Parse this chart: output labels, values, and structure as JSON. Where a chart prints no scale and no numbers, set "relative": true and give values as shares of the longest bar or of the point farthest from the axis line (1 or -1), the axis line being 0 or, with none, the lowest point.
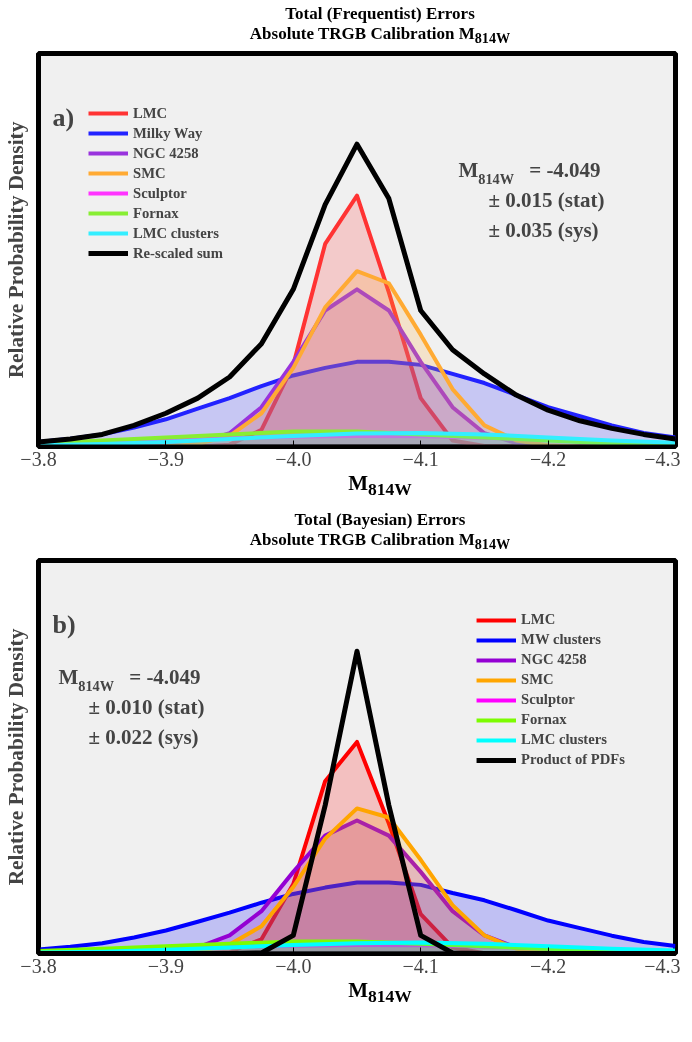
{
  "chart_data": [
    {
      "type": "area",
      "title": "Total (Frequentist) Errors",
      "subtitle": "Absolute TRGB Calibration M$_{814W}$",
      "xlabel": "M$_{814W}$",
      "ylabel": "Relative Probability Density",
      "relative": true,
      "legend": "top left",
      "annotations": [
        "a)",
        "M$_{814W}$ = -4.049",
        "± 0.015 (stat)",
        "± 0.035 (sys)"
      ],
      "xlim": [
        -3.8,
        -4.3
      ],
      "xticks": [
        {
          "value": -3.8,
          "label": "−3.8"
        },
        {
          "value": -3.9,
          "label": "−3.9"
        },
        {
          "value": -4.0,
          "label": "−4.0"
        },
        {
          "value": -4.1,
          "label": "−4.1"
        },
        {
          "value": -4.2,
          "label": "−4.2"
        },
        {
          "value": -4.3,
          "label": "−4.3"
        }
      ],
      "x": [
        -3.8,
        -3.825,
        -3.85,
        -3.875,
        -3.9,
        -3.925,
        -3.95,
        -3.975,
        -4.0,
        -4.025,
        -4.05,
        -4.075,
        -4.1,
        -4.125,
        -4.15,
        -4.175,
        -4.2,
        -4.225,
        -4.25,
        -4.275,
        -4.3
      ],
      "series": [
        {
          "name": "LMC",
          "color": "#ff3333",
          "values": [
            0,
            0,
            0,
            0,
            0,
            0,
            0.006,
            0.055,
            0.27,
            0.67,
            0.83,
            0.51,
            0.16,
            0.02,
            0.002,
            0,
            0,
            0,
            0,
            0,
            0
          ]
        },
        {
          "name": "Milky Way",
          "color": "#2222ff",
          "values": [
            0.015,
            0.026,
            0.04,
            0.063,
            0.09,
            0.125,
            0.16,
            0.2,
            0.235,
            0.26,
            0.28,
            0.28,
            0.27,
            0.24,
            0.21,
            0.17,
            0.13,
            0.1,
            0.07,
            0.045,
            0.03
          ]
        },
        {
          "name": "NGC 4258",
          "color": "#9933dd",
          "values": [
            0,
            0,
            0,
            0,
            0.002,
            0.011,
            0.044,
            0.13,
            0.28,
            0.45,
            0.52,
            0.45,
            0.28,
            0.13,
            0.044,
            0.011,
            0.002,
            0,
            0,
            0,
            0
          ]
        },
        {
          "name": "SMC",
          "color": "#ffaa33",
          "values": [
            0,
            0,
            0,
            0,
            0.001,
            0.008,
            0.035,
            0.11,
            0.26,
            0.46,
            0.58,
            0.54,
            0.37,
            0.19,
            0.07,
            0.02,
            0.004,
            0,
            0,
            0,
            0
          ]
        },
        {
          "name": "Sculptor",
          "color": "#ff33ff",
          "x": [
            -3.8,
            -3.85,
            -3.9,
            -3.95,
            -4.0,
            -4.05,
            -4.1,
            -4.15,
            -4.2,
            -4.25,
            -4.3
          ],
          "values": [
            0.006,
            0.012,
            0.02,
            0.027,
            0.032,
            0.035,
            0.034,
            0.029,
            0.022,
            0.015,
            0.009
          ]
        },
        {
          "name": "Fornax",
          "color": "#88ee33",
          "x": [
            -3.8,
            -3.85,
            -3.9,
            -3.95,
            -4.0,
            -4.05,
            -4.1,
            -4.15,
            -4.2,
            -4.25,
            -4.3
          ],
          "values": [
            0.01,
            0.02,
            0.03,
            0.04,
            0.05,
            0.05,
            0.04,
            0.03,
            0.02,
            0.01,
            0.005
          ]
        },
        {
          "name": "LMC clusters",
          "color": "#33eeff",
          "x": [
            -3.8,
            -3.85,
            -3.9,
            -3.95,
            -4.0,
            -4.05,
            -4.1,
            -4.15,
            -4.2,
            -4.25,
            -4.3
          ],
          "values": [
            0.004,
            0.008,
            0.015,
            0.025,
            0.035,
            0.043,
            0.045,
            0.04,
            0.03,
            0.02,
            0.012
          ]
        },
        {
          "name": "Re-scaled sum",
          "type": "line",
          "color": "#000000",
          "values": [
            0.015,
            0.025,
            0.04,
            0.07,
            0.11,
            0.16,
            0.23,
            0.34,
            0.52,
            0.8,
            1.0,
            0.82,
            0.45,
            0.32,
            0.24,
            0.17,
            0.12,
            0.085,
            0.06,
            0.04,
            0.025
          ]
        }
      ]
    },
    {
      "type": "area",
      "title": "Total (Bayesian) Errors",
      "subtitle": "Absolute TRGB Calibration M$_{814W}$",
      "xlabel": "M$_{814W}$",
      "ylabel": "Relative Probability Density",
      "relative": true,
      "legend": "top right",
      "annotations": [
        "b)",
        "M$_{814W}$ = -4.049",
        "± 0.010 (stat)",
        "± 0.022 (sys)"
      ],
      "xlim": [
        -3.8,
        -4.3
      ],
      "xticks": [
        {
          "value": -3.8,
          "label": "−3.8"
        },
        {
          "value": -3.9,
          "label": "−3.9"
        },
        {
          "value": -4.0,
          "label": "−4.0"
        },
        {
          "value": -4.1,
          "label": "−4.1"
        },
        {
          "value": -4.2,
          "label": "−4.2"
        },
        {
          "value": -4.3,
          "label": "−4.3"
        }
      ],
      "x": [
        -3.8,
        -3.825,
        -3.85,
        -3.875,
        -3.9,
        -3.925,
        -3.95,
        -3.975,
        -4.0,
        -4.025,
        -4.05,
        -4.075,
        -4.1,
        -4.125,
        -4.15,
        -4.175,
        -4.2,
        -4.225,
        -4.25,
        -4.275,
        -4.3
      ],
      "series": [
        {
          "name": "LMC",
          "color": "#ff0000",
          "values": [
            0,
            0,
            0,
            0,
            0,
            0,
            0.005,
            0.047,
            0.23,
            0.57,
            0.7,
            0.43,
            0.13,
            0.02,
            0.001,
            0,
            0,
            0,
            0,
            0,
            0
          ]
        },
        {
          "name": "MW clusters",
          "color": "#0000ff",
          "values": [
            0.013,
            0.022,
            0.034,
            0.053,
            0.076,
            0.105,
            0.135,
            0.168,
            0.197,
            0.218,
            0.235,
            0.235,
            0.227,
            0.2,
            0.176,
            0.143,
            0.109,
            0.084,
            0.059,
            0.038,
            0.025
          ]
        },
        {
          "name": "NGC 4258",
          "color": "#9400d3",
          "values": [
            0,
            0,
            0,
            0.001,
            0.005,
            0.02,
            0.06,
            0.14,
            0.27,
            0.39,
            0.44,
            0.39,
            0.27,
            0.14,
            0.06,
            0.02,
            0.005,
            0.001,
            0,
            0,
            0
          ]
        },
        {
          "name": "SMC",
          "color": "#ffa500",
          "values": [
            0,
            0,
            0,
            0,
            0.001,
            0.007,
            0.03,
            0.09,
            0.22,
            0.38,
            0.48,
            0.45,
            0.31,
            0.16,
            0.06,
            0.016,
            0.003,
            0,
            0,
            0,
            0
          ]
        },
        {
          "name": "Sculptor",
          "color": "#ff00ff",
          "x": [
            -3.8,
            -3.85,
            -3.9,
            -3.95,
            -4.0,
            -4.05,
            -4.1,
            -4.15,
            -4.2,
            -4.25,
            -4.3
          ],
          "values": [
            0.005,
            0.01,
            0.016,
            0.022,
            0.026,
            0.028,
            0.027,
            0.023,
            0.018,
            0.012,
            0.007
          ]
        },
        {
          "name": "Fornax",
          "color": "#7cfc00",
          "x": [
            -3.8,
            -3.85,
            -3.9,
            -3.95,
            -4.0,
            -4.05,
            -4.1,
            -4.15,
            -4.2,
            -4.25,
            -4.3
          ],
          "values": [
            0.008,
            0.016,
            0.024,
            0.032,
            0.04,
            0.04,
            0.032,
            0.024,
            0.016,
            0.008,
            0.004
          ]
        },
        {
          "name": "LMC clusters",
          "color": "#00ffff",
          "x": [
            -3.8,
            -3.85,
            -3.9,
            -3.95,
            -4.0,
            -4.05,
            -4.1,
            -4.15,
            -4.2,
            -4.25,
            -4.3
          ],
          "values": [
            0.003,
            0.006,
            0.012,
            0.02,
            0.028,
            0.034,
            0.036,
            0.032,
            0.024,
            0.016,
            0.01
          ]
        },
        {
          "name": "Product of PDFs",
          "type": "line",
          "color": "#000000",
          "values": [
            0,
            0,
            0,
            0,
            0,
            0,
            0,
            0.002,
            0.06,
            0.49,
            1.0,
            0.49,
            0.06,
            0.002,
            0,
            0,
            0,
            0,
            0,
            0,
            0
          ]
        }
      ]
    }
  ]
}
